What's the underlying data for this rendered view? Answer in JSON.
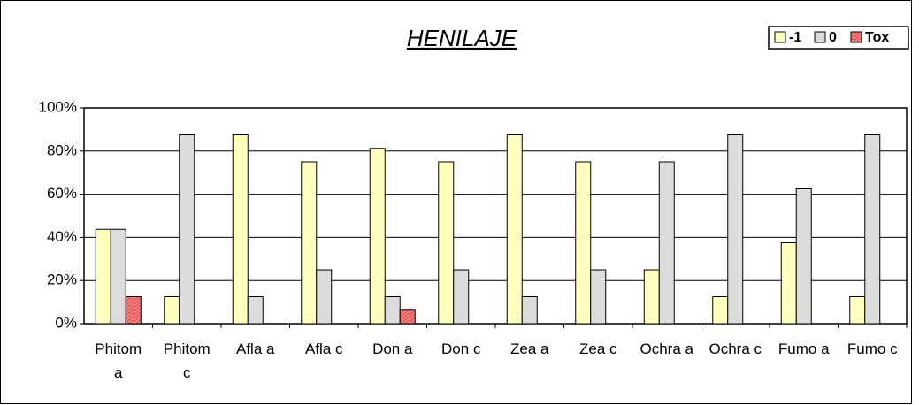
{
  "chart_data": {
    "type": "bar",
    "title": "HENILAJE",
    "categories": [
      "Phitom a",
      "Phitom c",
      "Afla a",
      "Afla c",
      "Don a",
      "Don c",
      "Zea a",
      "Zea c",
      "Ochra a",
      "Ochra c",
      "Fumo a",
      "Fumo c"
    ],
    "series": [
      {
        "name": "-1",
        "color": "#ffffc0",
        "values": [
          43.75,
          12.5,
          87.5,
          75,
          81.25,
          75,
          87.5,
          75,
          25,
          12.5,
          37.5,
          12.5
        ]
      },
      {
        "name": "0",
        "color": "#dcdcdc",
        "values": [
          43.75,
          87.5,
          12.5,
          25,
          12.5,
          25,
          12.5,
          25,
          75,
          87.5,
          62.5,
          87.5
        ]
      },
      {
        "name": "Tox",
        "color": "#ff8080",
        "values": [
          12.5,
          0,
          0,
          0,
          6.25,
          0,
          0,
          0,
          0,
          0,
          0,
          0
        ]
      }
    ],
    "ylim": [
      0,
      100
    ],
    "yticks": [
      {
        "value": 0,
        "label": "0%"
      },
      {
        "value": 20,
        "label": "20%"
      },
      {
        "value": 40,
        "label": "40%"
      },
      {
        "value": 60,
        "label": "60%"
      },
      {
        "value": 80,
        "label": "80%"
      },
      {
        "value": 100,
        "label": "100%"
      }
    ],
    "grid": true,
    "legend": "top-right"
  }
}
